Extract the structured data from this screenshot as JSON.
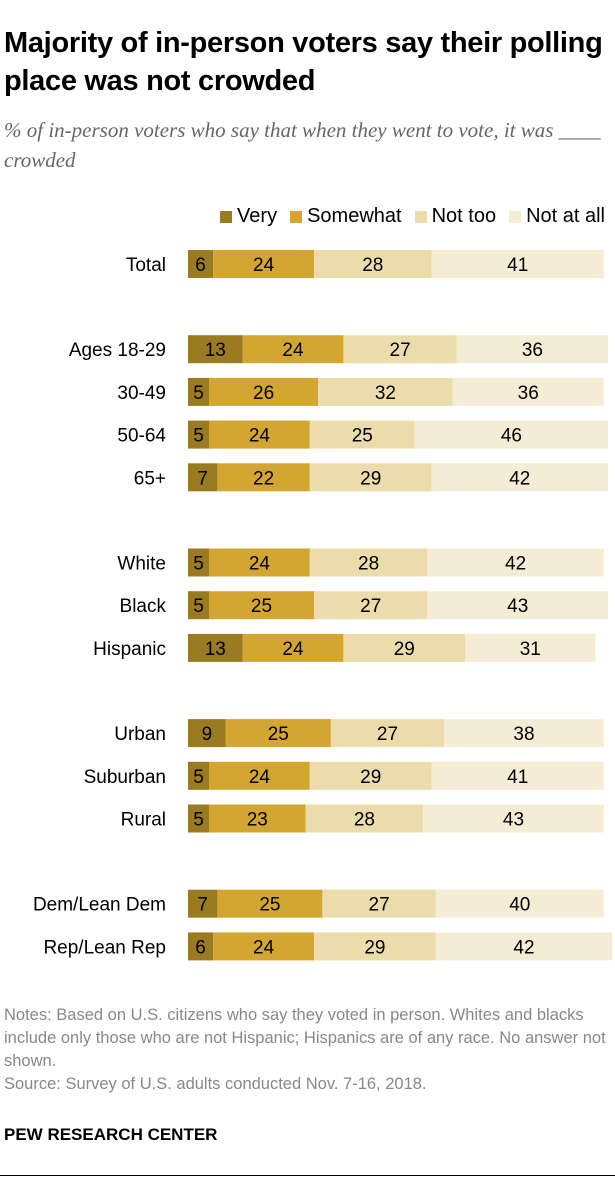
{
  "title": "Majority of in-person voters say their polling place was not crowded",
  "subtitle": "% of in-person voters who say that when they went to vote, it was ____ crowded",
  "notes": "Notes: Based on U.S. citizens who say they voted in person. Whites and blacks include only those who are not Hispanic; Hispanics are of any race. No answer not shown.",
  "source": "Source: Survey of U.S. adults conducted Nov. 7-16, 2018.",
  "brand": "PEW RESEARCH CENTER",
  "colors": {
    "very": "#9a7b22",
    "somewhat": "#d2a630",
    "not_too": "#ecdcab",
    "not_at_all": "#f5ecd6"
  },
  "chart_data": {
    "type": "bar",
    "orientation": "horizontal-stacked",
    "legend_position": "top-right",
    "series_names": [
      "Very",
      "Somewhat",
      "Not too",
      "Not at all"
    ],
    "categories": [
      "Total",
      "Ages 18-29",
      "30-49",
      "50-64",
      "65+",
      "White",
      "Black",
      "Hispanic",
      "Urban",
      "Suburban",
      "Rural",
      "Dem/Lean Dem",
      "Rep/Lean Rep"
    ],
    "groups": [
      [
        0
      ],
      [
        1,
        2,
        3,
        4
      ],
      [
        5,
        6,
        7
      ],
      [
        8,
        9,
        10
      ],
      [
        11,
        12
      ]
    ],
    "series": [
      {
        "name": "Very",
        "values": [
          6,
          13,
          5,
          5,
          7,
          5,
          5,
          13,
          9,
          5,
          5,
          7,
          6
        ]
      },
      {
        "name": "Somewhat",
        "values": [
          24,
          24,
          26,
          24,
          22,
          24,
          25,
          24,
          25,
          24,
          23,
          25,
          24
        ]
      },
      {
        "name": "Not too",
        "values": [
          28,
          27,
          32,
          25,
          29,
          28,
          27,
          29,
          27,
          29,
          28,
          27,
          29
        ]
      },
      {
        "name": "Not at all",
        "values": [
          41,
          36,
          36,
          46,
          42,
          42,
          43,
          31,
          38,
          41,
          43,
          40,
          42
        ]
      }
    ]
  }
}
